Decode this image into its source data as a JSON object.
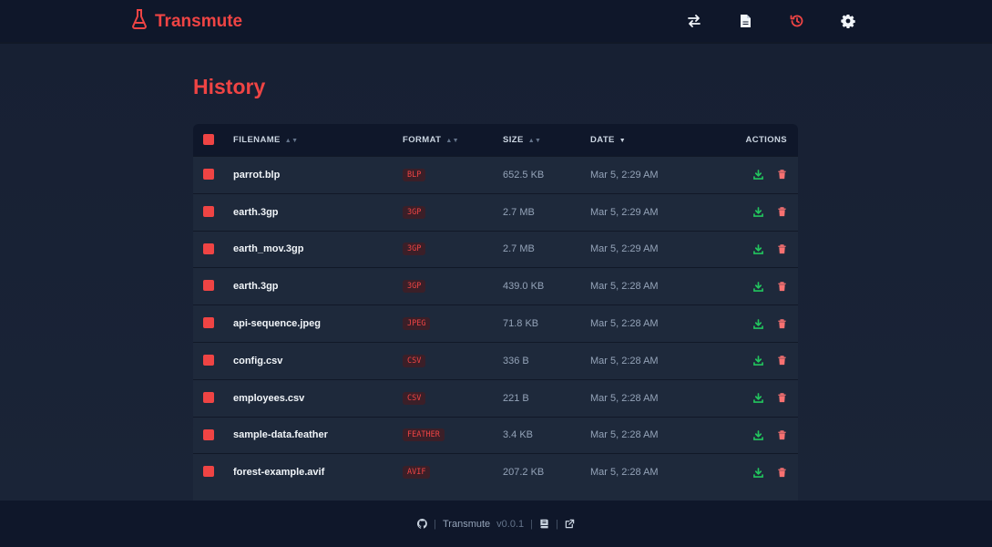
{
  "app": {
    "name": "Transmute",
    "version": "v0.0.1"
  },
  "nav": {
    "icons": [
      "swap-icon",
      "file-icon",
      "history-icon",
      "gear-icon"
    ],
    "active": "history-icon"
  },
  "page": {
    "title": "History"
  },
  "table": {
    "headers": {
      "filename": "FILENAME",
      "format": "FORMAT",
      "size": "SIZE",
      "date": "DATE",
      "actions": "ACTIONS"
    },
    "sort": {
      "column": "date",
      "direction": "descending"
    },
    "rows": [
      {
        "filename": "parrot.blp",
        "format": "BLP",
        "size": "652.5 KB",
        "date": "Mar 5, 2:29 AM"
      },
      {
        "filename": "earth.3gp",
        "format": "3GP",
        "size": "2.7 MB",
        "date": "Mar 5, 2:29 AM"
      },
      {
        "filename": "earth_mov.3gp",
        "format": "3GP",
        "size": "2.7 MB",
        "date": "Mar 5, 2:29 AM"
      },
      {
        "filename": "earth.3gp",
        "format": "3GP",
        "size": "439.0 KB",
        "date": "Mar 5, 2:28 AM"
      },
      {
        "filename": "api-sequence.jpeg",
        "format": "JPEG",
        "size": "71.8 KB",
        "date": "Mar 5, 2:28 AM"
      },
      {
        "filename": "config.csv",
        "format": "CSV",
        "size": "336 B",
        "date": "Mar 5, 2:28 AM"
      },
      {
        "filename": "employees.csv",
        "format": "CSV",
        "size": "221 B",
        "date": "Mar 5, 2:28 AM"
      },
      {
        "filename": "sample-data.feather",
        "format": "FEATHER",
        "size": "3.4 KB",
        "date": "Mar 5, 2:28 AM"
      },
      {
        "filename": "forest-example.avif",
        "format": "AVIF",
        "size": "207.2 KB",
        "date": "Mar 5, 2:28 AM"
      }
    ]
  },
  "footer": {
    "app_name": "Transmute",
    "version": "v0.0.1",
    "separator": "|",
    "icons": [
      "github-icon",
      "docs-icon",
      "external-link-icon"
    ]
  },
  "colors": {
    "accent": "#ef4444",
    "download": "#22c55e",
    "background": "#111827",
    "surface": "#1e293b"
  }
}
